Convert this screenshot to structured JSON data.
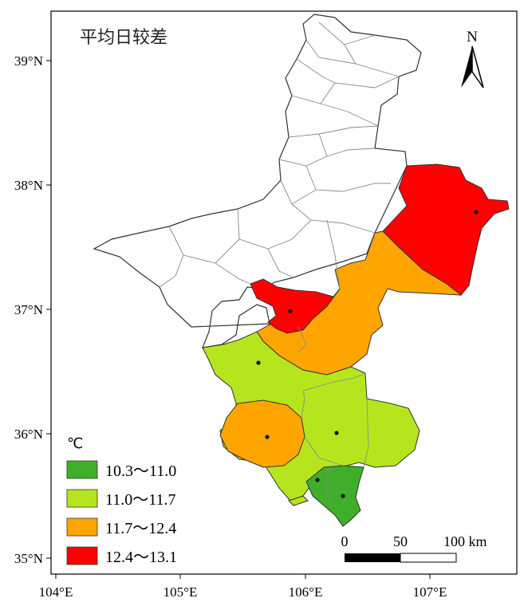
{
  "map": {
    "title": "平均日较差",
    "north_label": "N",
    "lat_labels": [
      "39°N",
      "38°N",
      "37°N",
      "36°N",
      "35°N"
    ],
    "lon_labels": [
      "104°E",
      "105°E",
      "106°E",
      "107°E"
    ],
    "legend": {
      "unit": "℃",
      "items": [
        {
          "label": "10.3～11.0",
          "color": "#3fae2a"
        },
        {
          "label": "11.0～11.7",
          "color": "#b5e61d"
        },
        {
          "label": "11.7～12.4",
          "color": "#ffa500"
        },
        {
          "label": "12.4～13.1",
          "color": "#ff0000"
        }
      ]
    },
    "scalebar": {
      "labels": [
        "0",
        "50",
        "100 km"
      ]
    },
    "colors": {
      "red": "#ff0000",
      "orange": "#ffa500",
      "light_green": "#b5e61d",
      "dark_green": "#3fae2a",
      "boundary": "#333333",
      "county_line": "#8a8a8a"
    }
  }
}
